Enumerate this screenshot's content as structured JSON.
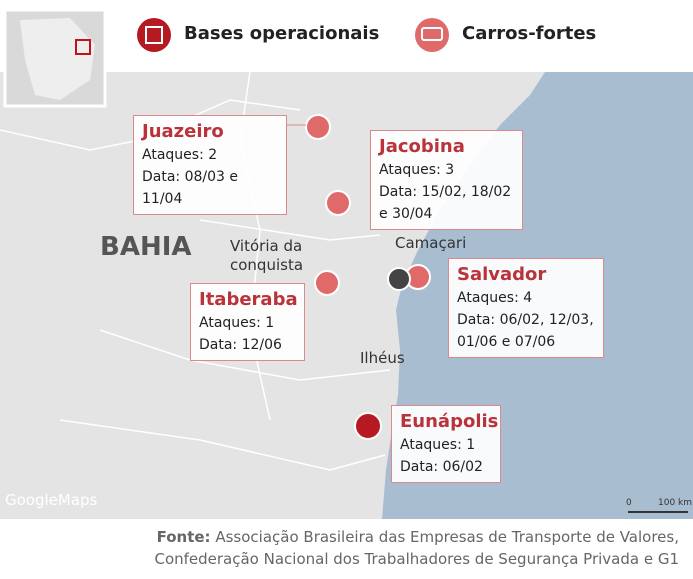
{
  "legend": [
    {
      "label": "Bases operacionais"
    },
    {
      "label": "Carros-fortes"
    }
  ],
  "map": {
    "region": "BAHIA",
    "cities": [
      [
        "Vitória da",
        "conquista"
      ],
      [
        "Camaçari"
      ],
      [
        "Ilhéus"
      ]
    ],
    "watermark": "GoogleMaps",
    "scale": {
      "start": "0",
      "end": "100 km"
    }
  },
  "callouts": [
    {
      "city": "Juazeiro",
      "attacks_label": "Ataques:",
      "attacks": 2,
      "date_label": "Data:",
      "dates": "08/03 e 11/04"
    },
    {
      "city": "Jacobina",
      "attacks_label": "Ataques:",
      "attacks": 3,
      "date_label": "Data:",
      "dates": "15/02, 18/02 e 30/04"
    },
    {
      "city": "Itaberaba",
      "attacks_label": "Ataques:",
      "attacks": 1,
      "date_label": "Data:",
      "dates": "12/06"
    },
    {
      "city": "Salvador",
      "attacks_label": "Ataques:",
      "attacks": 4,
      "date_label": "Data:",
      "dates": "06/02, 12/03, 01/06 e 07/06"
    },
    {
      "city": "Eunápolis",
      "attacks_label": "Ataques:",
      "attacks": 1,
      "date_label": "Data:",
      "dates": "06/02"
    }
  ],
  "source": {
    "label": "Fonte:",
    "lines": [
      "Associação Brasileira das Empresas de Transporte de Valores,",
      "Confederação Nacional dos Trabalhadores de Segurança Privada e G1"
    ]
  }
}
